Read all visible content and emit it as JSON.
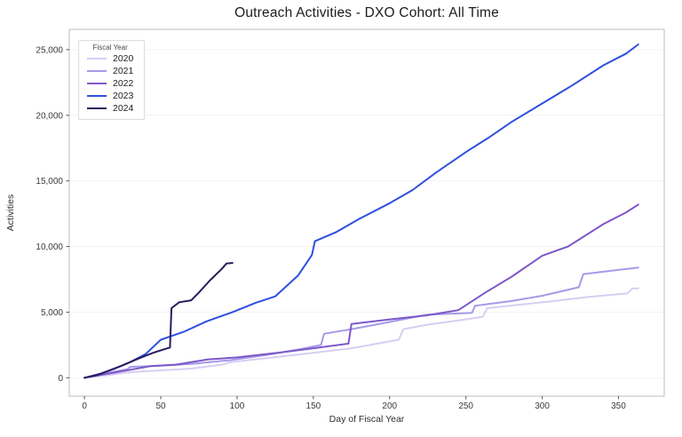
{
  "chart_data": {
    "type": "line",
    "title": "Outreach Activities - DXO Cohort: All Time",
    "xlabel": "Day of Fiscal Year",
    "ylabel": "Activities",
    "xlim": [
      -10,
      380
    ],
    "ylim": [
      -1400,
      26550
    ],
    "x_ticks": [
      0,
      50,
      100,
      150,
      200,
      250,
      300,
      350
    ],
    "x_tick_labels": [
      "0",
      "50",
      "100",
      "150",
      "200",
      "250",
      "300",
      "350"
    ],
    "y_ticks": [
      0,
      5000,
      10000,
      15000,
      20000,
      25000
    ],
    "y_tick_labels": [
      "0",
      "5,000",
      "10,000",
      "15,000",
      "20,000",
      "25,000"
    ],
    "grid": "horizontal-only",
    "grid_color": "#f2f2f2",
    "spine_color": "#bdbdbd",
    "tick_color": "#555555",
    "tick_label_color": "#3a3a3a",
    "legend": {
      "title": "Fiscal Year",
      "position": "upper-left"
    },
    "series": [
      {
        "name": "2020",
        "color": "#d9cdf2",
        "points": [
          [
            0,
            0
          ],
          [
            15,
            200
          ],
          [
            30,
            430
          ],
          [
            50,
            560
          ],
          [
            70,
            700
          ],
          [
            90,
            1000
          ],
          [
            96,
            1200
          ],
          [
            120,
            1500
          ],
          [
            150,
            1900
          ],
          [
            175,
            2250
          ],
          [
            206,
            2900
          ],
          [
            209,
            3700
          ],
          [
            225,
            4050
          ],
          [
            250,
            4450
          ],
          [
            261,
            4650
          ],
          [
            264,
            5300
          ],
          [
            280,
            5500
          ],
          [
            306,
            5830
          ],
          [
            330,
            6150
          ],
          [
            356,
            6440
          ],
          [
            359,
            6800
          ],
          [
            363,
            6800
          ]
        ]
      },
      {
        "name": "2021",
        "color": "#a69ae8",
        "points": [
          [
            0,
            0
          ],
          [
            10,
            250
          ],
          [
            28,
            650
          ],
          [
            30,
            830
          ],
          [
            50,
            920
          ],
          [
            70,
            1050
          ],
          [
            96,
            1350
          ],
          [
            120,
            1750
          ],
          [
            140,
            2150
          ],
          [
            155,
            2500
          ],
          [
            157,
            3350
          ],
          [
            175,
            3700
          ],
          [
            200,
            4250
          ],
          [
            224,
            4800
          ],
          [
            254,
            4950
          ],
          [
            256,
            5480
          ],
          [
            280,
            5850
          ],
          [
            300,
            6250
          ],
          [
            324,
            6900
          ],
          [
            327,
            7900
          ],
          [
            345,
            8150
          ],
          [
            363,
            8400
          ]
        ]
      },
      {
        "name": "2022",
        "color": "#7e57c9",
        "points": [
          [
            0,
            0
          ],
          [
            20,
            400
          ],
          [
            43,
            880
          ],
          [
            60,
            1000
          ],
          [
            81,
            1400
          ],
          [
            100,
            1550
          ],
          [
            130,
            1950
          ],
          [
            150,
            2250
          ],
          [
            173,
            2600
          ],
          [
            175,
            4100
          ],
          [
            200,
            4450
          ],
          [
            224,
            4750
          ],
          [
            245,
            5150
          ],
          [
            262,
            6440
          ],
          [
            280,
            7700
          ],
          [
            300,
            9300
          ],
          [
            317,
            10000
          ],
          [
            340,
            11700
          ],
          [
            355,
            12600
          ],
          [
            363,
            13200
          ]
        ]
      },
      {
        "name": "2023",
        "color": "#2f4fe0",
        "points": [
          [
            0,
            0
          ],
          [
            10,
            300
          ],
          [
            20,
            700
          ],
          [
            30,
            1200
          ],
          [
            40,
            1800
          ],
          [
            50,
            2900
          ],
          [
            65,
            3500
          ],
          [
            80,
            4300
          ],
          [
            97,
            5000
          ],
          [
            112,
            5700
          ],
          [
            125,
            6200
          ],
          [
            140,
            7800
          ],
          [
            149,
            9350
          ],
          [
            151,
            10400
          ],
          [
            165,
            11100
          ],
          [
            180,
            12100
          ],
          [
            200,
            13300
          ],
          [
            215,
            14300
          ],
          [
            230,
            15600
          ],
          [
            250,
            17200
          ],
          [
            265,
            18300
          ],
          [
            280,
            19500
          ],
          [
            300,
            20900
          ],
          [
            320,
            22300
          ],
          [
            340,
            23800
          ],
          [
            355,
            24700
          ],
          [
            363,
            25400
          ]
        ]
      },
      {
        "name": "2024",
        "color": "#2b1a5e",
        "points": [
          [
            0,
            0
          ],
          [
            8,
            200
          ],
          [
            15,
            500
          ],
          [
            25,
            950
          ],
          [
            35,
            1450
          ],
          [
            45,
            1900
          ],
          [
            53,
            2200
          ],
          [
            56,
            2300
          ],
          [
            57,
            5300
          ],
          [
            62,
            5750
          ],
          [
            70,
            5900
          ],
          [
            75,
            6500
          ],
          [
            82,
            7400
          ],
          [
            90,
            8300
          ],
          [
            93,
            8700
          ],
          [
            97,
            8750
          ]
        ]
      }
    ]
  }
}
